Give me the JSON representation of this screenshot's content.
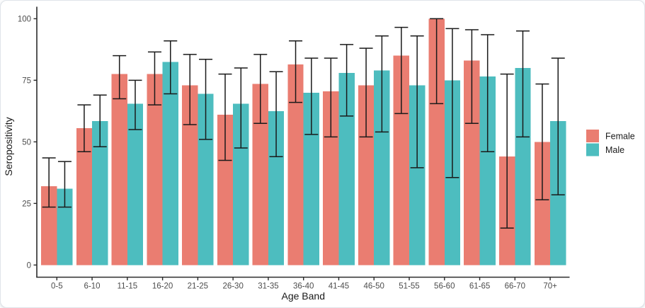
{
  "chart_data": {
    "type": "bar",
    "title": "",
    "xlabel": "Age Band",
    "ylabel": "Seropositivity",
    "categories": [
      "0-5",
      "6-10",
      "11-15",
      "16-20",
      "21-25",
      "26-30",
      "31-35",
      "36-40",
      "41-45",
      "46-50",
      "51-55",
      "56-60",
      "61-65",
      "66-70",
      "70+"
    ],
    "series": [
      {
        "name": "Female",
        "color": "#EA7D71",
        "values": [
          32,
          55.5,
          77.5,
          77.5,
          73,
          61,
          73.5,
          81.5,
          70.5,
          73,
          85,
          100,
          83,
          44,
          50
        ],
        "ci_low": [
          23.5,
          46,
          67.5,
          65,
          57,
          42.5,
          57.5,
          66,
          52,
          52,
          61.5,
          65.5,
          57.5,
          15,
          26.5
        ],
        "ci_high": [
          43.5,
          65,
          85,
          86.5,
          85.5,
          77.5,
          85.5,
          91,
          84,
          88,
          96.5,
          100,
          95.5,
          77.5,
          73.5
        ]
      },
      {
        "name": "Male",
        "color": "#4DBDBF",
        "values": [
          31,
          58.5,
          65.5,
          82.5,
          69.5,
          65.5,
          62.5,
          70,
          78,
          79,
          73,
          75,
          76.5,
          80,
          58.5
        ],
        "ci_low": [
          23.5,
          48,
          55,
          69.5,
          51,
          47.5,
          44,
          53,
          60.5,
          54,
          39.5,
          35.5,
          46,
          52,
          28.5
        ],
        "ci_high": [
          42,
          69,
          75,
          91,
          83.5,
          80,
          78.5,
          84,
          89.5,
          93,
          93,
          96,
          93.5,
          95,
          84
        ]
      }
    ],
    "ylim": [
      0,
      100
    ],
    "yticks": [
      0,
      25,
      50,
      75,
      100
    ],
    "grid": false,
    "legend_position": "right",
    "error_bar_color": "#1A1A1A",
    "axis_color": "#2B2B2B",
    "tick_label_color": "#4D4D4D",
    "axis_title_color": "#1A1A1A"
  }
}
